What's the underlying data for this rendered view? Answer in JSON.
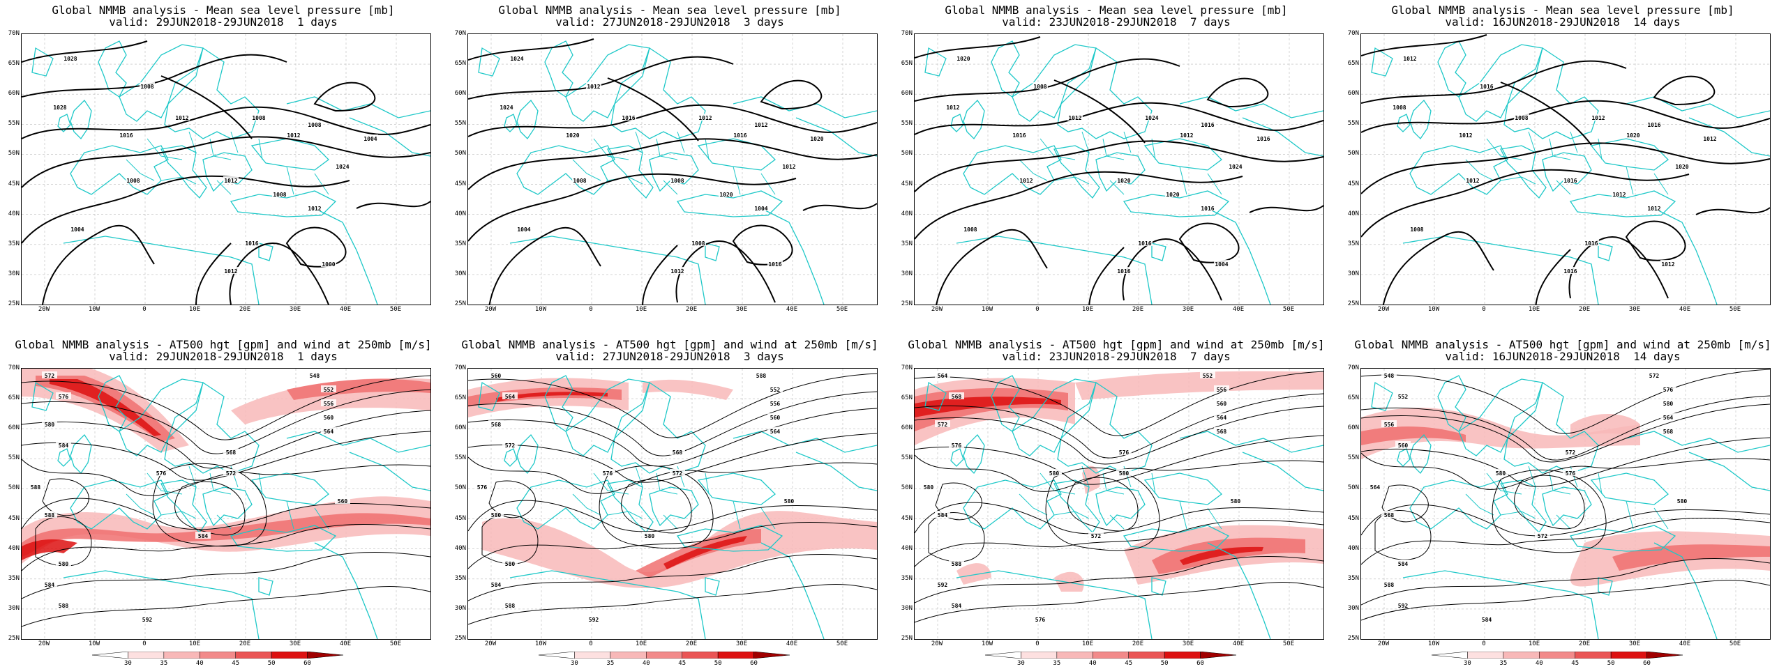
{
  "panels": [
    {
      "title": "Global NMMB analysis - Mean sea level pressure [mb]",
      "subtitle": "valid: 29JUN2018-29JUN2018  1 days",
      "kind": "mslp"
    },
    {
      "title": "Global NMMB analysis - Mean sea level pressure [mb]",
      "subtitle": "valid: 27JUN2018-29JUN2018  3 days",
      "kind": "mslp"
    },
    {
      "title": "Global NMMB analysis - Mean sea level pressure [mb]",
      "subtitle": "valid: 23JUN2018-29JUN2018  7 days",
      "kind": "mslp"
    },
    {
      "title": "Global NMMB analysis - Mean sea level pressure [mb]",
      "subtitle": "valid: 16JUN2018-29JUN2018  14 days",
      "kind": "mslp"
    },
    {
      "title": "Global NMMB analysis - AT500 hgt [gpm] and wind at 250mb [m/s]",
      "subtitle": "valid: 29JUN2018-29JUN2018  1 days",
      "kind": "z500"
    },
    {
      "title": "Global NMMB analysis - AT500 hgt [gpm] and wind at 250mb [m/s]",
      "subtitle": "valid: 27JUN2018-29JUN2018  3 days",
      "kind": "z500"
    },
    {
      "title": "Global NMMB analysis - AT500 hgt [gpm] and wind at 250mb [m/s]",
      "subtitle": "valid: 23JUN2018-29JUN2018  7 days",
      "kind": "z500"
    },
    {
      "title": "Global NMMB analysis - AT500 hgt [gpm] and wind at 250mb [m/s]",
      "subtitle": "valid: 16JUN2018-29JUN2018  14 days",
      "kind": "z500"
    }
  ],
  "lat_labels": [
    "70N",
    "65N",
    "60N",
    "55N",
    "50N",
    "45N",
    "40N",
    "35N",
    "30N",
    "25N"
  ],
  "lon_labels": [
    "20W",
    "10W",
    "0",
    "10E",
    "20E",
    "30E",
    "40E",
    "50E"
  ],
  "colorbar_labels": [
    "30",
    "35",
    "40",
    "45",
    "50",
    "60"
  ],
  "colors": {
    "coast": "#1ec8c8",
    "contour": "#000000",
    "jet_light": "#f8b8b8",
    "jet_mid": "#f07070",
    "jet_dark": "#dd1111"
  },
  "mslp_contour_labels": [
    [
      "1028",
      "1016",
      "1012",
      "1008",
      "1008",
      "1024",
      "1012",
      "1016",
      "1012",
      "1008",
      "1004",
      "1000",
      "1008",
      "1004",
      "1012",
      "1008",
      "1028",
      "1012"
    ],
    [
      "1024",
      "1020",
      "1016",
      "1012",
      "1012",
      "1012",
      "1008",
      "1008",
      "1004",
      "1008",
      "1004",
      "1016",
      "1012",
      "1020",
      "1016",
      "1020",
      "1024",
      "1012"
    ],
    [
      "1012",
      "1016",
      "1012",
      "1024",
      "1016",
      "1024",
      "1020",
      "1016",
      "1016",
      "1012",
      "1008",
      "1004",
      "1008",
      "1016",
      "1012",
      "1020",
      "1020",
      "1016"
    ],
    [
      "1008",
      "1012",
      "1008",
      "1012",
      "1016",
      "1020",
      "1016",
      "1016",
      "1012",
      "1012",
      "1008",
      "1012",
      "1016",
      "1012",
      "1020",
      "1012",
      "1012",
      "1016"
    ]
  ],
  "z500_contour_labels": [
    [
      "572",
      "576",
      "580",
      "584",
      "588",
      "588",
      "548",
      "552",
      "556",
      "560",
      "564",
      "568",
      "572",
      "576",
      "580",
      "584",
      "588",
      "592",
      "584",
      "560"
    ],
    [
      "560",
      "564",
      "568",
      "572",
      "576",
      "580",
      "588",
      "552",
      "556",
      "560",
      "564",
      "568",
      "572",
      "576",
      "580",
      "584",
      "588",
      "592",
      "580",
      "580"
    ],
    [
      "564",
      "568",
      "572",
      "576",
      "580",
      "584",
      "552",
      "556",
      "560",
      "564",
      "568",
      "576",
      "580",
      "580",
      "588",
      "592",
      "584",
      "576",
      "572",
      "580"
    ],
    [
      "548",
      "552",
      "556",
      "560",
      "564",
      "568",
      "572",
      "576",
      "580",
      "564",
      "568",
      "572",
      "576",
      "580",
      "584",
      "588",
      "592",
      "584",
      "572",
      "580"
    ]
  ]
}
